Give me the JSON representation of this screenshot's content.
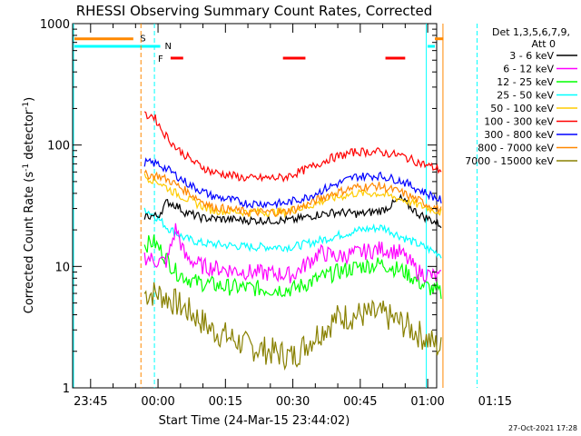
{
  "chart_data": {
    "type": "line",
    "title": "RHESSI Observing Summary Count Rates, Corrected",
    "xlabel": "Start Time (24-Mar-15 23:44:02)",
    "ylabel_main": "Corrected Count Rate (s",
    "ylabel_sup1": "-1",
    "ylabel_mid": " detector",
    "ylabel_sup2": "-1",
    "ylabel_end": ")",
    "yscale": "log",
    "ylim": [
      1,
      1000
    ],
    "xlim_minutes": [
      -19,
      62
    ],
    "y_ticks": [
      "1",
      "10",
      "100",
      "1000"
    ],
    "x_ticks": [
      {
        "label": "23:45",
        "t": -15
      },
      {
        "label": "00:00",
        "t": 0
      },
      {
        "label": "00:15",
        "t": 15
      },
      {
        "label": "00:30",
        "t": 30
      },
      {
        "label": "00:45",
        "t": 45
      },
      {
        "label": "01:00",
        "t": 60
      },
      {
        "label": "01:15",
        "t": 75
      }
    ],
    "legend_header_1": "Det 1,3,5,6,7,9,",
    "legend_header_2": "Att 0",
    "legend_placement": "right",
    "series": [
      {
        "name": "3 - 6 keV",
        "color": "#000000",
        "points": [
          [
            -3,
            26
          ],
          [
            0,
            26
          ],
          [
            2,
            34
          ],
          [
            4,
            32
          ],
          [
            6,
            28
          ],
          [
            10,
            25
          ],
          [
            20,
            24
          ],
          [
            30,
            24
          ],
          [
            36,
            27
          ],
          [
            40,
            28
          ],
          [
            45,
            27
          ],
          [
            50,
            29
          ],
          [
            54,
            36
          ],
          [
            58,
            27
          ],
          [
            63,
            22
          ]
        ]
      },
      {
        "name": "6 - 12 keV",
        "color": "#ff00ff",
        "points": [
          [
            -3,
            12
          ],
          [
            0,
            11
          ],
          [
            2,
            11
          ],
          [
            4,
            21
          ],
          [
            6,
            12
          ],
          [
            10,
            10
          ],
          [
            20,
            9
          ],
          [
            30,
            8.5
          ],
          [
            36,
            13
          ],
          [
            40,
            12
          ],
          [
            45,
            13
          ],
          [
            50,
            14
          ],
          [
            54,
            13
          ],
          [
            58,
            9
          ],
          [
            63,
            8
          ]
        ]
      },
      {
        "name": "12 - 25 keV",
        "color": "#00ff00",
        "points": [
          [
            -3,
            15
          ],
          [
            -1,
            16
          ],
          [
            1,
            13
          ],
          [
            4,
            9
          ],
          [
            8,
            7.5
          ],
          [
            15,
            6.8
          ],
          [
            25,
            6.5
          ],
          [
            30,
            6.5
          ],
          [
            36,
            8
          ],
          [
            40,
            9
          ],
          [
            45,
            10
          ],
          [
            50,
            10.5
          ],
          [
            55,
            9
          ],
          [
            59,
            7
          ],
          [
            63,
            6
          ]
        ]
      },
      {
        "name": "25 - 50 keV",
        "color": "#00ffff",
        "points": [
          [
            -3,
            30
          ],
          [
            0,
            25
          ],
          [
            2,
            21
          ],
          [
            6,
            17
          ],
          [
            10,
            15.5
          ],
          [
            20,
            14.5
          ],
          [
            30,
            14.5
          ],
          [
            35,
            16
          ],
          [
            40,
            18
          ],
          [
            45,
            20
          ],
          [
            50,
            21
          ],
          [
            55,
            17
          ],
          [
            60,
            14
          ],
          [
            63,
            12.5
          ]
        ]
      },
      {
        "name": "50 - 100 keV",
        "color": "#ffcc00",
        "points": [
          [
            -3,
            55
          ],
          [
            0,
            50
          ],
          [
            3,
            42
          ],
          [
            7,
            35
          ],
          [
            12,
            29
          ],
          [
            20,
            28
          ],
          [
            28,
            28
          ],
          [
            33,
            31
          ],
          [
            38,
            36
          ],
          [
            44,
            40
          ],
          [
            49,
            40
          ],
          [
            54,
            36
          ],
          [
            58,
            32
          ],
          [
            63,
            28
          ]
        ]
      },
      {
        "name": "100 - 300 keV",
        "color": "#ff0000",
        "points": [
          [
            -3,
            175
          ],
          [
            -1,
            175
          ],
          [
            1,
            130
          ],
          [
            4,
            95
          ],
          [
            8,
            72
          ],
          [
            12,
            60
          ],
          [
            20,
            53
          ],
          [
            28,
            54
          ],
          [
            33,
            63
          ],
          [
            38,
            77
          ],
          [
            44,
            88
          ],
          [
            49,
            88
          ],
          [
            54,
            82
          ],
          [
            58,
            72
          ],
          [
            63,
            62
          ]
        ]
      },
      {
        "name": "300 - 800 keV",
        "color": "#0000ff",
        "points": [
          [
            -3,
            72
          ],
          [
            0,
            70
          ],
          [
            3,
            60
          ],
          [
            7,
            47
          ],
          [
            12,
            38
          ],
          [
            20,
            33
          ],
          [
            28,
            33
          ],
          [
            33,
            37
          ],
          [
            38,
            45
          ],
          [
            44,
            55
          ],
          [
            49,
            56
          ],
          [
            54,
            51
          ],
          [
            58,
            43
          ],
          [
            63,
            35
          ]
        ]
      },
      {
        "name": "800 - 7000 keV",
        "color": "#ff8800",
        "points": [
          [
            -3,
            57
          ],
          [
            0,
            56
          ],
          [
            3,
            50
          ],
          [
            7,
            40
          ],
          [
            12,
            31
          ],
          [
            20,
            28
          ],
          [
            28,
            28
          ],
          [
            33,
            32
          ],
          [
            38,
            39
          ],
          [
            44,
            45
          ],
          [
            49,
            46
          ],
          [
            54,
            41
          ],
          [
            58,
            35
          ],
          [
            63,
            29
          ]
        ]
      },
      {
        "name": "7000 - 15000 keV",
        "color": "#888000",
        "points": [
          [
            -3,
            6
          ],
          [
            0,
            6
          ],
          [
            4,
            5
          ],
          [
            8,
            4
          ],
          [
            12,
            3
          ],
          [
            16,
            2.6
          ],
          [
            20,
            2.2
          ],
          [
            25,
            2
          ],
          [
            30,
            1.8
          ],
          [
            35,
            2.7
          ],
          [
            40,
            3.8
          ],
          [
            45,
            4
          ],
          [
            50,
            4
          ],
          [
            55,
            3.3
          ],
          [
            60,
            2.5
          ],
          [
            63,
            2.1
          ]
        ]
      }
    ],
    "flags": [
      {
        "label": "S",
        "color": "#ff8800",
        "value": 750
      },
      {
        "label": "N",
        "color": "#00ffff",
        "value": 650
      },
      {
        "label": "F",
        "color": "#ff0000",
        "value": 520
      }
    ]
  },
  "footer_date": "27-Oct-2021 17:28"
}
